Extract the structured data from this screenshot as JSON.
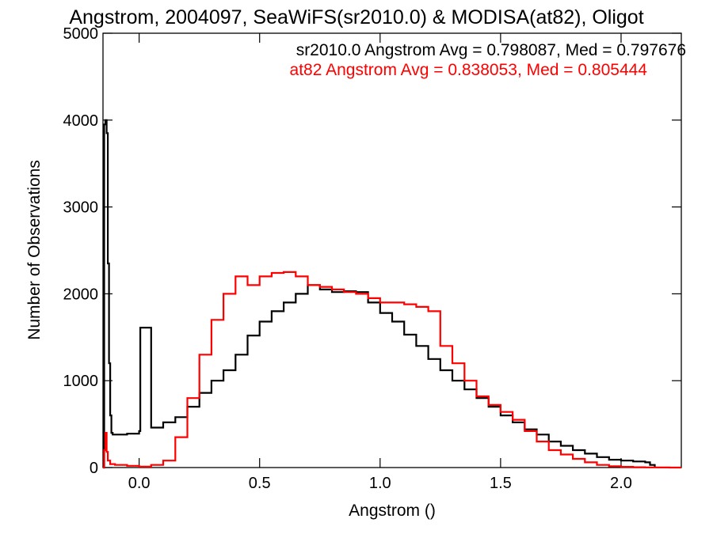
{
  "chart_data": {
    "type": "line",
    "title": "Angstrom, 2004097, SeaWiFS(sr2010.0) & MODISA(at82), Oligot",
    "xlabel": "Angstrom ()",
    "ylabel": "Number of Observations",
    "xlim": [
      -0.15,
      2.25
    ],
    "ylim": [
      0,
      5000
    ],
    "xticks": [
      0.0,
      0.5,
      1.0,
      1.5,
      2.0
    ],
    "xtick_labels": [
      "0.0",
      "0.5",
      "1.0",
      "1.5",
      "2.0"
    ],
    "yticks": [
      0,
      1000,
      2000,
      3000,
      4000,
      5000
    ],
    "ytick_labels": [
      "0",
      "1000",
      "2000",
      "3000",
      "4000",
      "5000"
    ],
    "grid": false,
    "annotations": [
      {
        "text": "sr2010.0 Angstrom Avg = 0.798087, Med = 0.797676",
        "color": "#000000"
      },
      {
        "text": "at82 Angstrom Avg = 0.838053, Med = 0.805444",
        "color": "#ff0000"
      }
    ],
    "series": [
      {
        "color": "#000000",
        "x": [
          -0.15,
          -0.145,
          -0.14,
          -0.135,
          -0.13,
          -0.125,
          -0.12,
          -0.115,
          -0.11,
          -0.1,
          -0.05,
          0.0,
          0.005,
          0.05,
          0.1,
          0.15,
          0.2,
          0.25,
          0.3,
          0.35,
          0.4,
          0.45,
          0.5,
          0.55,
          0.6,
          0.65,
          0.7,
          0.75,
          0.8,
          0.85,
          0.9,
          0.95,
          1.0,
          1.05,
          1.1,
          1.15,
          1.2,
          1.25,
          1.3,
          1.35,
          1.4,
          1.45,
          1.5,
          1.55,
          1.6,
          1.65,
          1.7,
          1.75,
          1.8,
          1.85,
          1.9,
          1.95,
          2.0,
          2.05,
          2.1,
          2.12,
          2.14
        ],
        "y": [
          0,
          3950,
          4000,
          3850,
          2350,
          1200,
          600,
          400,
          380,
          380,
          390,
          420,
          1610,
          460,
          520,
          580,
          700,
          860,
          1000,
          1120,
          1300,
          1520,
          1680,
          1800,
          1900,
          2000,
          2100,
          2050,
          2020,
          2030,
          2020,
          1900,
          1780,
          1680,
          1530,
          1400,
          1250,
          1120,
          1000,
          900,
          800,
          700,
          600,
          520,
          440,
          380,
          300,
          250,
          200,
          160,
          120,
          90,
          80,
          70,
          60,
          30,
          0
        ]
      },
      {
        "color": "#ff0000",
        "x": [
          -0.15,
          -0.145,
          -0.14,
          -0.135,
          -0.13,
          -0.12,
          -0.1,
          -0.05,
          0.0,
          0.05,
          0.1,
          0.15,
          0.2,
          0.25,
          0.3,
          0.35,
          0.4,
          0.45,
          0.5,
          0.55,
          0.6,
          0.65,
          0.7,
          0.75,
          0.8,
          0.85,
          0.9,
          0.95,
          1.0,
          1.05,
          1.1,
          1.15,
          1.2,
          1.25,
          1.3,
          1.35,
          1.4,
          1.45,
          1.5,
          1.55,
          1.6,
          1.65,
          1.7,
          1.75,
          1.8,
          1.85,
          1.9,
          1.95,
          2.0,
          2.05,
          2.1,
          2.15,
          2.2,
          2.25
        ],
        "y": [
          0,
          200,
          400,
          180,
          80,
          40,
          30,
          20,
          10,
          30,
          80,
          350,
          800,
          1300,
          1700,
          2000,
          2200,
          2100,
          2200,
          2240,
          2250,
          2200,
          2100,
          2080,
          2050,
          2020,
          2000,
          1950,
          1900,
          1900,
          1880,
          1850,
          1800,
          1400,
          1200,
          1000,
          820,
          720,
          640,
          550,
          420,
          300,
          200,
          150,
          100,
          60,
          30,
          15,
          8,
          4,
          2,
          1,
          0,
          0
        ]
      }
    ]
  }
}
